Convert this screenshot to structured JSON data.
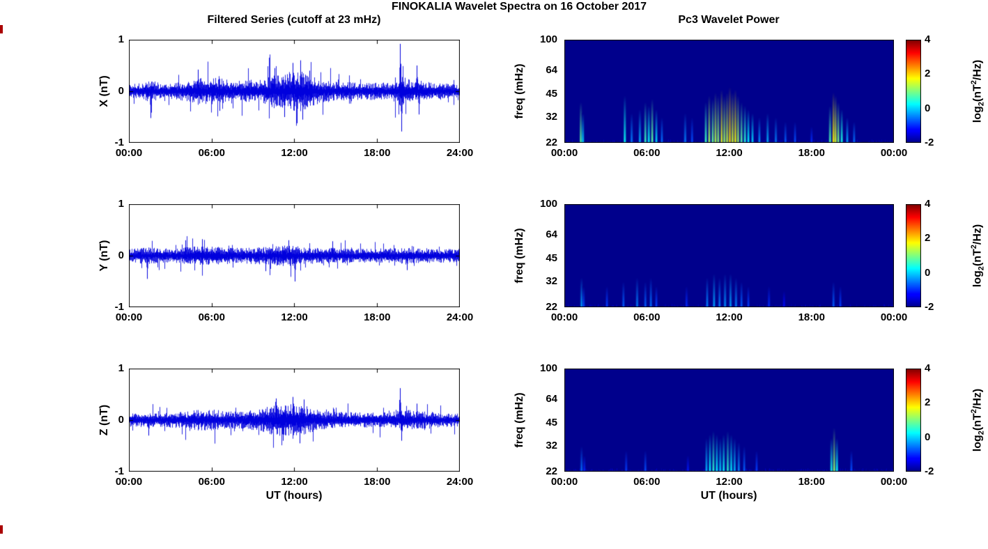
{
  "figure": {
    "title": "FINOKALIA Wavelet Spectra on 16 October 2017",
    "left_column_title": "Filtered Series (cutoff at 23 mHz)",
    "right_column_title": "Pc3 Wavelet Power",
    "background_color": "#ffffff",
    "text_color": "#000000",
    "series_color": "#0000dd",
    "spectrogram_background_color": "#000087",
    "colormap": "jet",
    "edge_artifact_color": "#aa0000",
    "colorbar_label": {
      "prefix": "log",
      "sub": "2",
      "mid": "(nT",
      "sup": "2",
      "suffix": "/Hz)"
    }
  },
  "chart_data": [
    {
      "type": "line",
      "panel": "filtered-series-x",
      "title": "",
      "xlabel": "",
      "ylabel": "X (nT)",
      "x_range_hours": [
        0,
        24
      ],
      "ylim": [
        -1,
        1
      ],
      "x_ticks": [
        "00:00",
        "06:00",
        "12:00",
        "18:00",
        "24:00"
      ],
      "y_ticks": [
        "1",
        "0",
        "-1"
      ],
      "line_color": "#0000dd",
      "noise": {
        "description": "Zero-mean band-pass filtered geomagnetic noise; envelope=[UT hour, amplitude nT]; spikes=[UT hour, peak nT]",
        "envelope": [
          [
            0,
            0.1
          ],
          [
            1,
            0.12
          ],
          [
            1.6,
            0.16
          ],
          [
            2.5,
            0.1
          ],
          [
            4,
            0.14
          ],
          [
            5,
            0.2
          ],
          [
            5.8,
            0.18
          ],
          [
            6.5,
            0.22
          ],
          [
            7.5,
            0.14
          ],
          [
            8.5,
            0.16
          ],
          [
            9.5,
            0.14
          ],
          [
            10.2,
            0.22
          ],
          [
            11,
            0.26
          ],
          [
            11.8,
            0.28
          ],
          [
            12.4,
            0.32
          ],
          [
            13,
            0.24
          ],
          [
            14,
            0.16
          ],
          [
            15,
            0.14
          ],
          [
            16,
            0.13
          ],
          [
            17,
            0.12
          ],
          [
            18,
            0.13
          ],
          [
            19,
            0.12
          ],
          [
            19.8,
            0.22
          ],
          [
            20.5,
            0.16
          ],
          [
            21,
            0.18
          ],
          [
            22,
            0.12
          ],
          [
            23,
            0.11
          ],
          [
            24,
            0.1
          ]
        ],
        "spikes": [
          [
            1.55,
            -0.52
          ],
          [
            5.0,
            0.42
          ],
          [
            6.6,
            -0.38
          ],
          [
            10.6,
            0.45
          ],
          [
            11.3,
            -0.5
          ],
          [
            11.9,
            0.55
          ],
          [
            12.2,
            -0.62
          ],
          [
            12.45,
            0.6
          ],
          [
            12.6,
            -0.55
          ],
          [
            13.1,
            0.4
          ],
          [
            19.72,
            0.92
          ],
          [
            19.8,
            -0.78
          ],
          [
            20.9,
            0.5
          ],
          [
            21.05,
            -0.45
          ]
        ]
      }
    },
    {
      "type": "line",
      "panel": "filtered-series-y",
      "title": "",
      "xlabel": "",
      "ylabel": "Y (nT)",
      "x_range_hours": [
        0,
        24
      ],
      "ylim": [
        -1,
        1
      ],
      "x_ticks": [
        "00:00",
        "06:00",
        "12:00",
        "18:00",
        "24:00"
      ],
      "y_ticks": [
        "1",
        "0",
        "-1"
      ],
      "line_color": "#0000dd",
      "noise": {
        "description": "Zero-mean band-pass filtered geomagnetic noise; envelope=[UT hour, amplitude nT]; spikes=[UT hour, peak nT]",
        "envelope": [
          [
            0,
            0.1
          ],
          [
            1.5,
            0.12
          ],
          [
            3,
            0.1
          ],
          [
            5,
            0.14
          ],
          [
            6.5,
            0.13
          ],
          [
            8,
            0.11
          ],
          [
            10,
            0.13
          ],
          [
            11,
            0.15
          ],
          [
            12,
            0.15
          ],
          [
            13,
            0.12
          ],
          [
            15,
            0.11
          ],
          [
            17,
            0.1
          ],
          [
            19,
            0.11
          ],
          [
            21,
            0.11
          ],
          [
            23,
            0.1
          ],
          [
            24,
            0.1
          ]
        ],
        "spikes": [
          [
            1.3,
            -0.45
          ],
          [
            4.1,
            0.3
          ],
          [
            5.3,
            0.32
          ],
          [
            9.9,
            -0.3
          ],
          [
            11.6,
            0.3
          ],
          [
            12.05,
            -0.5
          ],
          [
            14.8,
            0.28
          ],
          [
            20.2,
            -0.28
          ]
        ]
      }
    },
    {
      "type": "line",
      "panel": "filtered-series-z",
      "title": "",
      "xlabel": "UT (hours)",
      "ylabel": "Z (nT)",
      "x_range_hours": [
        0,
        24
      ],
      "ylim": [
        -1,
        1
      ],
      "x_ticks": [
        "00:00",
        "06:00",
        "12:00",
        "18:00",
        "24:00"
      ],
      "y_ticks": [
        "1",
        "0",
        "-1"
      ],
      "line_color": "#0000dd",
      "noise": {
        "description": "Zero-mean band-pass filtered geomagnetic noise; envelope=[UT hour, amplitude nT]; spikes=[UT hour, peak nT]",
        "envelope": [
          [
            0,
            0.1
          ],
          [
            2,
            0.1
          ],
          [
            4,
            0.12
          ],
          [
            5,
            0.15
          ],
          [
            6,
            0.16
          ],
          [
            7,
            0.13
          ],
          [
            8,
            0.12
          ],
          [
            9.5,
            0.16
          ],
          [
            10.5,
            0.22
          ],
          [
            11.5,
            0.24
          ],
          [
            12.5,
            0.24
          ],
          [
            13.5,
            0.16
          ],
          [
            15,
            0.12
          ],
          [
            17,
            0.11
          ],
          [
            19,
            0.11
          ],
          [
            19.8,
            0.16
          ],
          [
            21,
            0.13
          ],
          [
            23,
            0.1
          ],
          [
            24,
            0.1
          ]
        ],
        "spikes": [
          [
            1.4,
            -0.3
          ],
          [
            10.7,
            0.42
          ],
          [
            11.2,
            -0.4
          ],
          [
            11.9,
            0.45
          ],
          [
            12.4,
            -0.45
          ],
          [
            12.7,
            0.4
          ],
          [
            19.7,
            0.62
          ],
          [
            19.78,
            -0.4
          ],
          [
            20.9,
            0.32
          ]
        ]
      }
    },
    {
      "type": "heatmap",
      "panel": "wavelet-power-x",
      "title": "",
      "xlabel": "",
      "ylabel": "freq (mHz)",
      "x_range_hours": [
        0,
        24
      ],
      "freq_range_mHz": [
        22,
        100
      ],
      "freq_scale": "log",
      "x_ticks": [
        "00:00",
        "06:00",
        "12:00",
        "18:00",
        "00:00"
      ],
      "y_ticks": [
        "100",
        "64",
        "45",
        "32",
        "22"
      ],
      "background_power_log2": -2,
      "colorbar": {
        "range": [
          -2,
          4
        ],
        "tick_labels": [
          "4",
          "2",
          "0",
          "-2"
        ],
        "colormap": "jet"
      },
      "events_note": "[UT hour, max freq mHz, peak log2 power nT^2/Hz]; bursts rise from 22 mHz",
      "events": [
        [
          1.2,
          40,
          0.8
        ],
        [
          1.35,
          34,
          0.0
        ],
        [
          4.4,
          44,
          0.3
        ],
        [
          4.9,
          34,
          -0.5
        ],
        [
          5.5,
          36,
          -0.2
        ],
        [
          5.9,
          40,
          0.6
        ],
        [
          6.15,
          38,
          0.3
        ],
        [
          6.4,
          42,
          0.8
        ],
        [
          6.7,
          36,
          0.0
        ],
        [
          7.1,
          32,
          -0.6
        ],
        [
          8.8,
          34,
          -0.5
        ],
        [
          9.3,
          32,
          -0.8
        ],
        [
          10.3,
          40,
          0.6
        ],
        [
          10.55,
          44,
          1.2
        ],
        [
          10.8,
          42,
          0.9
        ],
        [
          11.0,
          46,
          1.3
        ],
        [
          11.2,
          44,
          1.1
        ],
        [
          11.45,
          48,
          1.6
        ],
        [
          11.65,
          44,
          1.2
        ],
        [
          11.85,
          46,
          1.4
        ],
        [
          12.05,
          50,
          1.9
        ],
        [
          12.25,
          46,
          1.5
        ],
        [
          12.45,
          48,
          1.7
        ],
        [
          12.65,
          44,
          1.2
        ],
        [
          12.9,
          40,
          0.8
        ],
        [
          13.15,
          38,
          0.5
        ],
        [
          13.4,
          36,
          0.2
        ],
        [
          13.7,
          34,
          0.0
        ],
        [
          14.2,
          32,
          -0.4
        ],
        [
          14.8,
          34,
          -0.2
        ],
        [
          15.4,
          32,
          -0.5
        ],
        [
          16.1,
          30,
          -0.7
        ],
        [
          16.8,
          30,
          -0.8
        ],
        [
          18.0,
          28,
          -1.0
        ],
        [
          19.35,
          38,
          0.7
        ],
        [
          19.6,
          46,
          1.8
        ],
        [
          19.75,
          44,
          1.5
        ],
        [
          19.95,
          40,
          1.0
        ],
        [
          20.2,
          36,
          0.4
        ],
        [
          20.6,
          32,
          -0.3
        ],
        [
          21.1,
          30,
          -0.6
        ]
      ]
    },
    {
      "type": "heatmap",
      "panel": "wavelet-power-y",
      "title": "",
      "xlabel": "",
      "ylabel": "freq (mHz)",
      "x_range_hours": [
        0,
        24
      ],
      "freq_range_mHz": [
        22,
        100
      ],
      "freq_scale": "log",
      "x_ticks": [
        "00:00",
        "06:00",
        "12:00",
        "18:00",
        "00:00"
      ],
      "y_ticks": [
        "100",
        "64",
        "45",
        "32",
        "22"
      ],
      "background_power_log2": -2,
      "colorbar": {
        "range": [
          -2,
          4
        ],
        "tick_labels": [
          "4",
          "2",
          "0",
          "-2"
        ],
        "colormap": "jet"
      },
      "events_note": "[UT hour, max freq mHz, peak log2 power nT^2/Hz]; bursts rise from 22 mHz",
      "events": [
        [
          1.25,
          34,
          -0.3
        ],
        [
          1.4,
          30,
          -0.8
        ],
        [
          3.1,
          30,
          -0.9
        ],
        [
          4.3,
          32,
          -0.7
        ],
        [
          5.3,
          34,
          -0.5
        ],
        [
          5.9,
          32,
          -0.7
        ],
        [
          6.3,
          34,
          -0.6
        ],
        [
          6.7,
          30,
          -0.9
        ],
        [
          8.9,
          30,
          -1.0
        ],
        [
          10.4,
          34,
          -0.5
        ],
        [
          10.9,
          36,
          -0.3
        ],
        [
          11.3,
          34,
          -0.5
        ],
        [
          11.7,
          36,
          -0.4
        ],
        [
          12.1,
          36,
          -0.3
        ],
        [
          12.5,
          34,
          -0.5
        ],
        [
          12.9,
          32,
          -0.7
        ],
        [
          13.4,
          30,
          -0.9
        ],
        [
          14.9,
          30,
          -1.0
        ],
        [
          16.0,
          28,
          -1.2
        ],
        [
          19.6,
          32,
          -0.7
        ],
        [
          20.1,
          30,
          -0.9
        ]
      ]
    },
    {
      "type": "heatmap",
      "panel": "wavelet-power-z",
      "title": "",
      "xlabel": "UT (hours)",
      "ylabel": "freq (mHz)",
      "x_range_hours": [
        0,
        24
      ],
      "freq_range_mHz": [
        22,
        100
      ],
      "freq_scale": "log",
      "x_ticks": [
        "00:00",
        "06:00",
        "12:00",
        "18:00",
        "00:00"
      ],
      "y_ticks": [
        "100",
        "64",
        "45",
        "32",
        "22"
      ],
      "background_power_log2": -2,
      "colorbar": {
        "range": [
          -2,
          4
        ],
        "tick_labels": [
          "4",
          "2",
          "0",
          "-2"
        ],
        "colormap": "jet"
      },
      "events_note": "[UT hour, max freq mHz, peak log2 power nT^2/Hz]; bursts rise from 22 mHz",
      "events": [
        [
          1.25,
          32,
          -0.6
        ],
        [
          1.45,
          28,
          -1.0
        ],
        [
          4.5,
          30,
          -0.9
        ],
        [
          5.9,
          30,
          -0.8
        ],
        [
          9.0,
          28,
          -1.1
        ],
        [
          10.35,
          36,
          -0.2
        ],
        [
          10.6,
          38,
          0.2
        ],
        [
          10.85,
          40,
          0.5
        ],
        [
          11.1,
          38,
          0.2
        ],
        [
          11.35,
          36,
          0.0
        ],
        [
          11.6,
          38,
          0.3
        ],
        [
          11.9,
          40,
          0.5
        ],
        [
          12.15,
          38,
          0.2
        ],
        [
          12.4,
          36,
          -0.1
        ],
        [
          12.7,
          34,
          -0.4
        ],
        [
          13.1,
          32,
          -0.7
        ],
        [
          14.0,
          30,
          -0.9
        ],
        [
          19.45,
          36,
          0.4
        ],
        [
          19.65,
          42,
          1.1
        ],
        [
          19.85,
          36,
          0.3
        ],
        [
          20.9,
          30,
          -0.8
        ]
      ]
    }
  ]
}
